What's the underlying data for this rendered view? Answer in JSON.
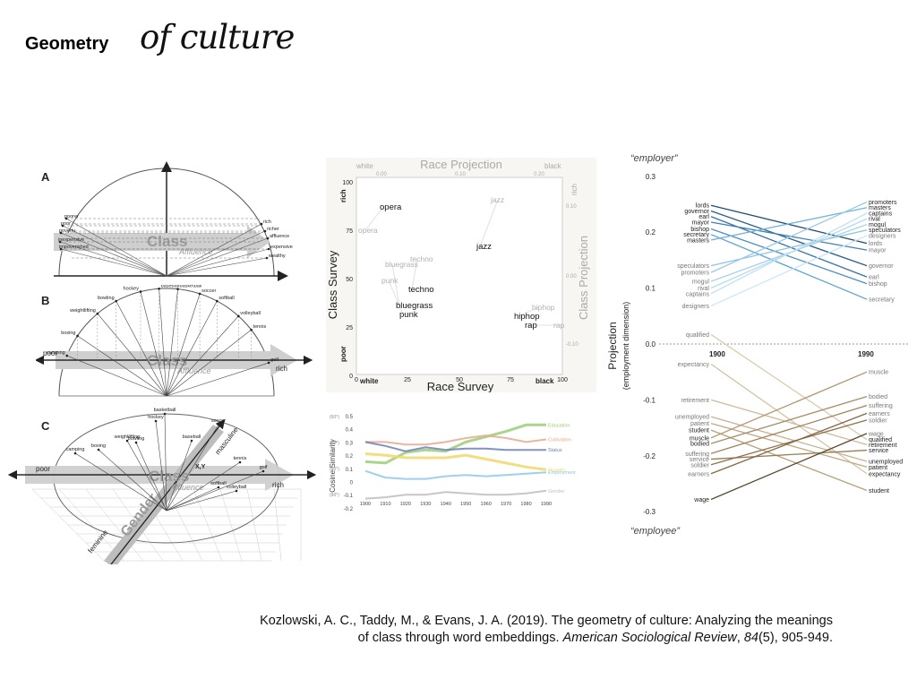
{
  "title": {
    "main": "Geometry",
    "script": "of culture"
  },
  "figure_a": {
    "letter": "A",
    "left_words": [
      "poorer",
      "poor",
      "poverty",
      "inexpensive",
      "impoverished"
    ],
    "right_words": [
      "rich",
      "richer",
      "affluence",
      "expensive",
      "wealthy"
    ],
    "class_label": "Class",
    "affluence_label": "Affluence"
  },
  "figure_b": {
    "letter": "B",
    "sports": [
      "camping",
      "boxing",
      "weightlifting",
      "bowling",
      "hockey",
      "baseball",
      "basketball",
      "soccer",
      "softball",
      "volleyball",
      "tennis",
      "golf"
    ],
    "axis_left": "poor",
    "axis_right": "rich",
    "class_label": "Class",
    "affluence_label": "Affluence"
  },
  "figure_c": {
    "letter": "C",
    "sports": [
      "camping",
      "boxing",
      "weightlifting",
      "bowling",
      "hockey",
      "basketball",
      "baseball",
      "soccer",
      "tennis",
      "golf",
      "softball",
      "volleyball"
    ],
    "axis_left": "poor",
    "axis_right": "rich",
    "class_label": "Class",
    "affluence_label": "Affluence",
    "gender_label": "Gender",
    "masculine": "masculine",
    "feminine": "feminine",
    "xly_label": "X,Y"
  },
  "scatter": {
    "top_axis_title": "Race Projection",
    "top_left": "white",
    "top_right": "black",
    "top_ticks": [
      "0.00",
      "0.10",
      "0.20"
    ],
    "right_axis_title": "Class Projection",
    "right_top": "rich",
    "right_ticks": [
      "0.10",
      "0.00",
      "-0.10"
    ],
    "y_axis_title": "Class Survey",
    "y_top": "rich",
    "y_bottom": "poor",
    "y_ticks": [
      "100",
      "75",
      "50",
      "25",
      "0"
    ],
    "x_axis_title": "Race Survey",
    "x_left": "white",
    "x_right": "black",
    "x_ticks": [
      "0",
      "25",
      "50",
      "75",
      "100"
    ],
    "survey_words": [
      "opera",
      "jazz",
      "techno",
      "bluegrass",
      "punk",
      "hiphop",
      "rap"
    ],
    "projection_words": [
      "opera",
      "jazz",
      "techno",
      "bluegrass",
      "punk",
      "hiphop",
      "rap"
    ]
  },
  "similarity": {
    "y_axis_title": "Cosine Similarity",
    "y_ticks": [
      "0.5",
      "0.4",
      "0.3",
      "0.2",
      "0.1",
      "0",
      "-0.1",
      "-0.2"
    ],
    "angle_ticks": [
      "(60°)",
      "(70°)",
      "(80°)",
      "(90°)"
    ],
    "x_ticks": [
      "1900",
      "1910",
      "1920",
      "1930",
      "1940",
      "1950",
      "1960",
      "1970",
      "1980",
      "1990"
    ],
    "series_names": [
      "Education",
      "Cultivation",
      "Status",
      "Morality",
      "Employment",
      "Gender"
    ],
    "colors": {
      "Education": "#9ccc78",
      "Cultivation": "#e8a98c",
      "Status": "#6b7fb8",
      "Morality": "#f0d86a",
      "Employment": "#8ec8e8",
      "Gender": "#bdbdbd"
    }
  },
  "projection": {
    "top_label": "“employer”",
    "bottom_label": "“employee”",
    "y_axis_title": "Projection",
    "y_axis_subtitle": "(employment dimension)",
    "y_ticks": [
      "0.3",
      "0.2",
      "0.1",
      "0.0",
      "-0.1",
      "-0.2",
      "-0.3"
    ],
    "year_left": "1900",
    "year_right": "1990",
    "left_employer": [
      "lords",
      "governor",
      "earl",
      "mayor",
      "bishop",
      "secretary",
      "masters",
      "speculators",
      "promoters",
      "mogul",
      "rival",
      "captains",
      "designers"
    ],
    "right_employer": [
      "promoters",
      "masters",
      "captains",
      "rival",
      "mogul",
      "speculators",
      "designers",
      "lords",
      "mayor",
      "governor",
      "earl",
      "bishop",
      "secretary"
    ],
    "left_employee": [
      "qualified",
      "expectancy",
      "retirement",
      "unemployed",
      "patient",
      "student",
      "muscle",
      "bodied",
      "suffering",
      "service",
      "soldier",
      "earners",
      "wage"
    ],
    "right_employee": [
      "muscle",
      "bodied",
      "suffering",
      "earners",
      "soldier",
      "wage",
      "qualified",
      "retirement",
      "service",
      "unemployed",
      "patient",
      "expectancy",
      "student"
    ]
  },
  "citation": {
    "line1": "Kozlowski, A. C., Taddy, M., & Evans, J. A. (2019). The geometry of culture: Analyzing the meanings",
    "line2_pre": "of class through word embeddings. ",
    "journal": "American Sociological Review",
    "line2_mid": ", ",
    "volume": "84",
    "line2_post": "(5), 905-949."
  }
}
